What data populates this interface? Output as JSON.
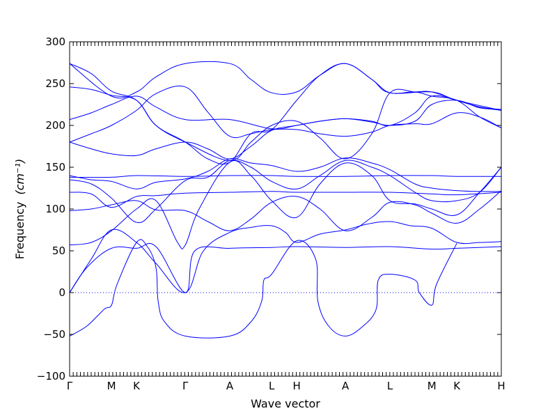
{
  "chart_data": {
    "type": "line",
    "title": "",
    "xlabel": "Wave vector",
    "ylabel": "Frequency",
    "ylabel_unit": "(cm⁻¹)",
    "ylim": [
      -100,
      300
    ],
    "yticks": [
      -100,
      -50,
      0,
      50,
      100,
      150,
      200,
      250,
      300
    ],
    "ytick_labels": [
      "−100",
      "−50",
      "0",
      "50",
      "100",
      "150",
      "200",
      "250",
      "300"
    ],
    "xlim": [
      0,
      1
    ],
    "xticks": [
      {
        "label": "Γ",
        "x": 0.0
      },
      {
        "label": "M",
        "x": 0.097
      },
      {
        "label": "K",
        "x": 0.155
      },
      {
        "label": "Γ",
        "x": 0.268
      },
      {
        "label": "A",
        "x": 0.371
      },
      {
        "label": "L",
        "x": 0.468
      },
      {
        "label": "H",
        "x": 0.526
      },
      {
        "label": "A",
        "x": 0.639
      },
      {
        "label": "L",
        "x": 0.742
      },
      {
        "label": "M",
        "x": 0.839
      },
      {
        "label": "K",
        "x": 0.897
      },
      {
        "label": "H",
        "x": 1.0
      }
    ],
    "zero_line": {
      "y": 0,
      "style": "dotted"
    },
    "grid": false,
    "line_color": "#0000ff",
    "series": [
      {
        "values": [
          [
            0,
            0
          ],
          [
            0.05,
            40
          ],
          [
            0.097,
            75
          ],
          [
            0.155,
            60
          ],
          [
            0.2,
            35
          ],
          [
            0.268,
            0
          ],
          [
            0.31,
            50
          ],
          [
            0.371,
            72
          ],
          [
            0.42,
            78
          ],
          [
            0.468,
            80
          ],
          [
            0.5,
            72
          ],
          [
            0.526,
            60
          ],
          [
            0.58,
            70
          ],
          [
            0.639,
            75
          ],
          [
            0.69,
            82
          ],
          [
            0.742,
            85
          ],
          [
            0.79,
            80
          ],
          [
            0.839,
            77
          ],
          [
            0.897,
            60
          ],
          [
            0.95,
            60
          ],
          [
            1.0,
            61
          ]
        ]
      },
      {
        "values": [
          [
            0,
            0
          ],
          [
            0.04,
            30
          ],
          [
            0.097,
            53
          ],
          [
            0.155,
            53
          ],
          [
            0.2,
            55
          ],
          [
            0.268,
            0
          ],
          [
            0.29,
            50
          ],
          [
            0.371,
            53
          ],
          [
            0.468,
            54
          ],
          [
            0.526,
            55
          ],
          [
            0.639,
            54
          ],
          [
            0.742,
            55
          ],
          [
            0.839,
            52
          ],
          [
            0.897,
            53
          ],
          [
            1.0,
            55
          ]
        ]
      },
      {
        "values": [
          [
            0,
            -52
          ],
          [
            0.04,
            -40
          ],
          [
            0.08,
            -20
          ],
          [
            0.097,
            -15
          ],
          [
            0.11,
            10
          ],
          [
            0.155,
            60
          ],
          [
            0.18,
            55
          ],
          [
            0.2,
            30
          ],
          [
            0.205,
            -10
          ],
          [
            0.22,
            -35
          ],
          [
            0.268,
            -52
          ],
          [
            0.371,
            -52
          ],
          [
            0.42,
            -35
          ],
          [
            0.445,
            -10
          ],
          [
            0.45,
            15
          ],
          [
            0.468,
            22
          ],
          [
            0.526,
            62
          ],
          [
            0.57,
            40
          ],
          [
            0.575,
            -10
          ],
          [
            0.6,
            -40
          ],
          [
            0.639,
            -52
          ],
          [
            0.68,
            -40
          ],
          [
            0.71,
            -20
          ],
          [
            0.715,
            15
          ],
          [
            0.742,
            22
          ],
          [
            0.8,
            15
          ],
          [
            0.81,
            0
          ],
          [
            0.839,
            -15
          ],
          [
            0.85,
            10
          ],
          [
            0.897,
            59
          ]
        ]
      },
      {
        "values": [
          [
            0,
            57
          ],
          [
            0.05,
            60
          ],
          [
            0.097,
            74
          ],
          [
            0.155,
            100
          ],
          [
            0.2,
            110
          ],
          [
            0.25,
            60
          ],
          [
            0.268,
            57
          ],
          [
            0.3,
            100
          ],
          [
            0.371,
            156
          ],
          [
            0.42,
            140
          ],
          [
            0.468,
            110
          ],
          [
            0.526,
            90
          ],
          [
            0.58,
            130
          ],
          [
            0.639,
            155
          ],
          [
            0.7,
            140
          ],
          [
            0.742,
            110
          ],
          [
            0.8,
            106
          ],
          [
            0.839,
            100
          ],
          [
            0.897,
            93
          ],
          [
            0.95,
            120
          ],
          [
            1.0,
            150
          ]
        ]
      },
      {
        "values": [
          [
            0,
            98
          ],
          [
            0.05,
            100
          ],
          [
            0.097,
            105
          ],
          [
            0.155,
            110
          ],
          [
            0.2,
            99
          ],
          [
            0.268,
            98
          ],
          [
            0.32,
            85
          ],
          [
            0.371,
            74
          ],
          [
            0.42,
            88
          ],
          [
            0.468,
            108
          ],
          [
            0.526,
            115
          ],
          [
            0.58,
            100
          ],
          [
            0.639,
            74
          ],
          [
            0.7,
            90
          ],
          [
            0.742,
            108
          ],
          [
            0.8,
            105
          ],
          [
            0.839,
            95
          ],
          [
            0.897,
            83
          ],
          [
            0.95,
            100
          ],
          [
            1.0,
            122
          ]
        ]
      },
      {
        "values": [
          [
            0,
            120
          ],
          [
            0.05,
            118
          ],
          [
            0.097,
            102
          ],
          [
            0.155,
            115
          ],
          [
            0.2,
            116
          ],
          [
            0.268,
            119
          ],
          [
            0.371,
            120
          ],
          [
            0.468,
            121
          ],
          [
            0.526,
            120
          ],
          [
            0.639,
            120
          ],
          [
            0.742,
            120
          ],
          [
            0.839,
            118
          ],
          [
            0.897,
            117
          ],
          [
            1.0,
            120
          ]
        ]
      },
      {
        "values": [
          [
            0,
            135
          ],
          [
            0.05,
            130
          ],
          [
            0.097,
            113
          ],
          [
            0.155,
            84
          ],
          [
            0.2,
            100
          ],
          [
            0.268,
            134
          ],
          [
            0.32,
            138
          ],
          [
            0.371,
            158
          ],
          [
            0.42,
            150
          ],
          [
            0.468,
            133
          ],
          [
            0.526,
            124
          ],
          [
            0.58,
            140
          ],
          [
            0.639,
            158
          ],
          [
            0.7,
            150
          ],
          [
            0.742,
            140
          ],
          [
            0.8,
            120
          ],
          [
            0.839,
            110
          ],
          [
            0.897,
            110
          ],
          [
            0.95,
            120
          ],
          [
            1.0,
            150
          ]
        ]
      },
      {
        "values": [
          [
            0,
            138
          ],
          [
            0.097,
            138
          ],
          [
            0.155,
            140
          ],
          [
            0.268,
            139
          ],
          [
            0.371,
            140
          ],
          [
            0.468,
            140
          ],
          [
            0.526,
            139
          ],
          [
            0.639,
            139
          ],
          [
            0.742,
            140
          ],
          [
            0.839,
            140
          ],
          [
            0.897,
            139
          ],
          [
            1.0,
            139
          ]
        ]
      },
      {
        "values": [
          [
            0,
            140
          ],
          [
            0.05,
            135
          ],
          [
            0.097,
            133
          ],
          [
            0.155,
            124
          ],
          [
            0.2,
            132
          ],
          [
            0.268,
            136
          ],
          [
            0.32,
            145
          ],
          [
            0.371,
            160
          ],
          [
            0.42,
            155
          ],
          [
            0.468,
            152
          ],
          [
            0.526,
            145
          ],
          [
            0.58,
            150
          ],
          [
            0.639,
            161
          ],
          [
            0.7,
            155
          ],
          [
            0.742,
            147
          ],
          [
            0.8,
            130
          ],
          [
            0.839,
            125
          ],
          [
            0.897,
            122
          ],
          [
            0.95,
            121
          ],
          [
            1.0,
            121
          ]
        ]
      },
      {
        "values": [
          [
            0,
            180
          ],
          [
            0.05,
            172
          ],
          [
            0.097,
            166
          ],
          [
            0.155,
            164
          ],
          [
            0.2,
            172
          ],
          [
            0.268,
            180
          ],
          [
            0.32,
            172
          ],
          [
            0.371,
            160
          ],
          [
            0.42,
            175
          ],
          [
            0.468,
            194
          ],
          [
            0.526,
            200
          ],
          [
            0.58,
            205
          ],
          [
            0.639,
            208
          ],
          [
            0.7,
            204
          ],
          [
            0.742,
            200
          ],
          [
            0.8,
            205
          ],
          [
            0.839,
            225
          ],
          [
            0.897,
            230
          ],
          [
            0.95,
            221
          ],
          [
            1.0,
            219
          ]
        ]
      },
      {
        "values": [
          [
            0,
            180
          ],
          [
            0.05,
            190
          ],
          [
            0.097,
            200
          ],
          [
            0.155,
            218
          ],
          [
            0.2,
            238
          ],
          [
            0.268,
            246
          ],
          [
            0.32,
            216
          ],
          [
            0.371,
            187
          ],
          [
            0.42,
            190
          ],
          [
            0.468,
            195
          ],
          [
            0.526,
            195
          ],
          [
            0.58,
            190
          ],
          [
            0.639,
            187
          ],
          [
            0.7,
            192
          ],
          [
            0.742,
            200
          ],
          [
            0.8,
            202
          ],
          [
            0.839,
            202
          ],
          [
            0.897,
            215
          ],
          [
            0.95,
            210
          ],
          [
            1.0,
            197
          ]
        ]
      },
      {
        "values": [
          [
            0,
            207
          ],
          [
            0.05,
            215
          ],
          [
            0.097,
            225
          ],
          [
            0.155,
            235
          ],
          [
            0.2,
            222
          ],
          [
            0.268,
            207
          ],
          [
            0.371,
            207
          ],
          [
            0.468,
            196
          ],
          [
            0.526,
            200
          ],
          [
            0.58,
            205
          ],
          [
            0.639,
            208
          ],
          [
            0.7,
            205
          ],
          [
            0.742,
            200
          ],
          [
            0.8,
            215
          ],
          [
            0.839,
            235
          ],
          [
            0.897,
            230
          ],
          [
            0.95,
            222
          ],
          [
            1.0,
            219
          ]
        ]
      },
      {
        "values": [
          [
            0,
            246
          ],
          [
            0.05,
            243
          ],
          [
            0.097,
            236
          ],
          [
            0.155,
            230
          ],
          [
            0.2,
            200
          ],
          [
            0.268,
            180
          ],
          [
            0.371,
            158
          ],
          [
            0.42,
            180
          ],
          [
            0.468,
            200
          ],
          [
            0.526,
            205
          ],
          [
            0.58,
            185
          ],
          [
            0.639,
            160
          ],
          [
            0.7,
            190
          ],
          [
            0.742,
            239
          ],
          [
            0.8,
            240
          ],
          [
            0.839,
            240
          ],
          [
            0.897,
            230
          ],
          [
            0.95,
            222
          ],
          [
            1.0,
            218
          ]
        ]
      },
      {
        "values": [
          [
            0,
            274
          ],
          [
            0.05,
            262
          ],
          [
            0.097,
            241
          ],
          [
            0.155,
            230
          ],
          [
            0.2,
            200
          ],
          [
            0.268,
            180
          ],
          [
            0.32,
            160
          ],
          [
            0.371,
            156
          ],
          [
            0.42,
            190
          ],
          [
            0.468,
            195
          ],
          [
            0.526,
            230
          ],
          [
            0.58,
            260
          ],
          [
            0.639,
            274
          ],
          [
            0.7,
            255
          ],
          [
            0.742,
            239
          ],
          [
            0.8,
            240
          ],
          [
            0.839,
            235
          ],
          [
            0.897,
            230
          ],
          [
            0.95,
            210
          ],
          [
            1.0,
            197
          ]
        ]
      },
      {
        "values": [
          [
            0,
            274
          ],
          [
            0.097,
            235
          ],
          [
            0.155,
            240
          ],
          [
            0.2,
            258
          ],
          [
            0.268,
            274
          ],
          [
            0.371,
            274
          ],
          [
            0.42,
            255
          ],
          [
            0.468,
            239
          ],
          [
            0.526,
            240
          ],
          [
            0.58,
            260
          ],
          [
            0.639,
            274
          ],
          [
            0.7,
            255
          ],
          [
            0.742,
            239
          ],
          [
            0.839,
            240
          ],
          [
            0.897,
            230
          ],
          [
            1.0,
            218
          ]
        ]
      }
    ]
  }
}
